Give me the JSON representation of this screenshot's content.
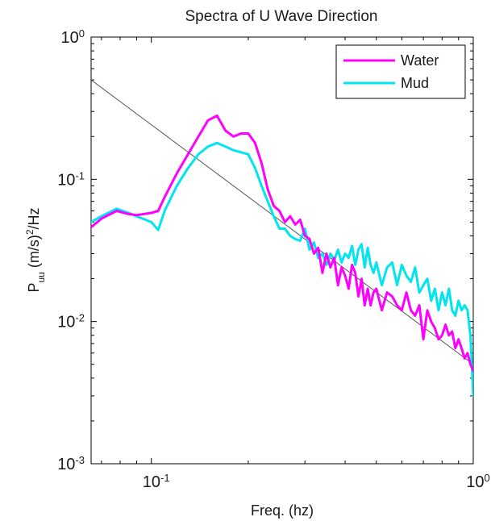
{
  "chart_data": {
    "type": "line",
    "title": "Spectra of U Wave Direction",
    "xlabel": "Freq. (hz)",
    "ylabel": {
      "base": "P",
      "sub": "uu",
      "mid": " (m/s)",
      "sup": "2",
      "tail": "/Hz"
    },
    "x_scale": "log",
    "y_scale": "log",
    "xlim": [
      0.065,
      1.0
    ],
    "ylim": [
      0.001,
      1.0
    ],
    "x_ticks": [
      {
        "value": 0.1,
        "base": "10",
        "exp": "-1"
      },
      {
        "value": 1.0,
        "base": "10",
        "exp": "0"
      }
    ],
    "y_ticks": [
      {
        "value": 1.0,
        "base": "10",
        "exp": "0"
      },
      {
        "value": 0.1,
        "base": "10",
        "exp": "-1"
      },
      {
        "value": 0.01,
        "base": "10",
        "exp": "-2"
      },
      {
        "value": 0.001,
        "base": "10",
        "exp": "-3"
      }
    ],
    "grid": false,
    "legend": {
      "position": "top-right"
    },
    "series": [
      {
        "name": "Water",
        "color": "#ff00ff",
        "x": [
          0.065,
          0.07,
          0.078,
          0.085,
          0.09,
          0.1,
          0.105,
          0.11,
          0.12,
          0.13,
          0.14,
          0.15,
          0.16,
          0.17,
          0.18,
          0.19,
          0.2,
          0.21,
          0.22,
          0.23,
          0.24,
          0.25,
          0.26,
          0.27,
          0.28,
          0.29,
          0.3,
          0.31,
          0.32,
          0.33,
          0.34,
          0.35,
          0.36,
          0.37,
          0.38,
          0.39,
          0.4,
          0.41,
          0.42,
          0.43,
          0.44,
          0.45,
          0.46,
          0.47,
          0.48,
          0.49,
          0.5,
          0.52,
          0.54,
          0.56,
          0.58,
          0.6,
          0.62,
          0.64,
          0.66,
          0.68,
          0.7,
          0.72,
          0.74,
          0.76,
          0.78,
          0.8,
          0.82,
          0.84,
          0.86,
          0.88,
          0.9,
          0.92,
          0.94,
          0.96,
          0.98,
          1.0
        ],
        "y": [
          0.046,
          0.053,
          0.06,
          0.057,
          0.056,
          0.058,
          0.06,
          0.075,
          0.11,
          0.15,
          0.2,
          0.26,
          0.28,
          0.22,
          0.2,
          0.21,
          0.21,
          0.18,
          0.13,
          0.085,
          0.065,
          0.06,
          0.05,
          0.055,
          0.048,
          0.052,
          0.04,
          0.038,
          0.03,
          0.033,
          0.022,
          0.03,
          0.024,
          0.028,
          0.018,
          0.024,
          0.021,
          0.017,
          0.025,
          0.022,
          0.015,
          0.02,
          0.013,
          0.017,
          0.013,
          0.016,
          0.017,
          0.012,
          0.016,
          0.015,
          0.013,
          0.012,
          0.016,
          0.012,
          0.011,
          0.013,
          0.0075,
          0.012,
          0.01,
          0.009,
          0.0075,
          0.008,
          0.0095,
          0.008,
          0.0085,
          0.0065,
          0.0075,
          0.0065,
          0.0055,
          0.006,
          0.005,
          0.0045
        ]
      },
      {
        "name": "Mud",
        "color": "#00e5ee",
        "x": [
          0.065,
          0.07,
          0.078,
          0.085,
          0.09,
          0.1,
          0.105,
          0.11,
          0.12,
          0.13,
          0.14,
          0.15,
          0.16,
          0.17,
          0.18,
          0.19,
          0.2,
          0.21,
          0.22,
          0.23,
          0.24,
          0.25,
          0.26,
          0.27,
          0.28,
          0.29,
          0.3,
          0.31,
          0.32,
          0.33,
          0.34,
          0.35,
          0.36,
          0.37,
          0.38,
          0.39,
          0.4,
          0.41,
          0.42,
          0.43,
          0.44,
          0.45,
          0.46,
          0.47,
          0.48,
          0.49,
          0.5,
          0.52,
          0.54,
          0.56,
          0.58,
          0.6,
          0.62,
          0.64,
          0.66,
          0.68,
          0.7,
          0.72,
          0.74,
          0.76,
          0.78,
          0.8,
          0.82,
          0.84,
          0.86,
          0.88,
          0.9,
          0.92,
          0.94,
          0.96,
          0.98,
          1.0
        ],
        "y": [
          0.05,
          0.055,
          0.062,
          0.058,
          0.055,
          0.05,
          0.044,
          0.06,
          0.09,
          0.12,
          0.15,
          0.17,
          0.18,
          0.17,
          0.16,
          0.155,
          0.15,
          0.12,
          0.09,
          0.07,
          0.055,
          0.045,
          0.045,
          0.04,
          0.038,
          0.037,
          0.045,
          0.032,
          0.036,
          0.028,
          0.03,
          0.025,
          0.03,
          0.027,
          0.032,
          0.026,
          0.03,
          0.028,
          0.034,
          0.025,
          0.032,
          0.035,
          0.024,
          0.033,
          0.025,
          0.022,
          0.026,
          0.018,
          0.024,
          0.026,
          0.018,
          0.025,
          0.021,
          0.019,
          0.024,
          0.016,
          0.018,
          0.02,
          0.014,
          0.017,
          0.012,
          0.016,
          0.013,
          0.017,
          0.012,
          0.011,
          0.014,
          0.012,
          0.013,
          0.012,
          0.008,
          0.003
        ]
      },
      {
        "color": "#555555",
        "x": [
          0.065,
          1.0
        ],
        "y": [
          0.5,
          0.005
        ]
      }
    ]
  }
}
